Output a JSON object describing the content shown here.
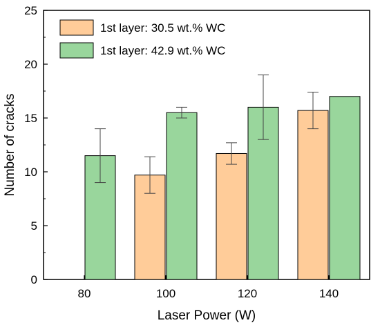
{
  "chart_data": {
    "type": "bar",
    "title": "",
    "xlabel": "Laser Power (W)",
    "ylabel": "Number of cracks",
    "categories": [
      "80",
      "100",
      "120",
      "140"
    ],
    "ylim": [
      0,
      25
    ],
    "yticks": [
      "0",
      "5",
      "10",
      "15",
      "20",
      "25"
    ],
    "grid": false,
    "legend_position": "top-left",
    "series": [
      {
        "name": "1st layer: 30.5 wt.% WC",
        "color": "#FFCC99",
        "values": [
          null,
          9.7,
          11.7,
          15.7
        ],
        "err_low": [
          null,
          8.0,
          10.7,
          14.0
        ],
        "err_high": [
          null,
          11.4,
          12.7,
          17.4
        ]
      },
      {
        "name": "1st layer: 42.9 wt.% WC",
        "color": "#99D69C",
        "values": [
          11.5,
          15.5,
          16.0,
          17.0
        ],
        "err_low": [
          9.0,
          15.0,
          13.0,
          null
        ],
        "err_high": [
          14.0,
          16.0,
          19.0,
          null
        ]
      }
    ]
  }
}
